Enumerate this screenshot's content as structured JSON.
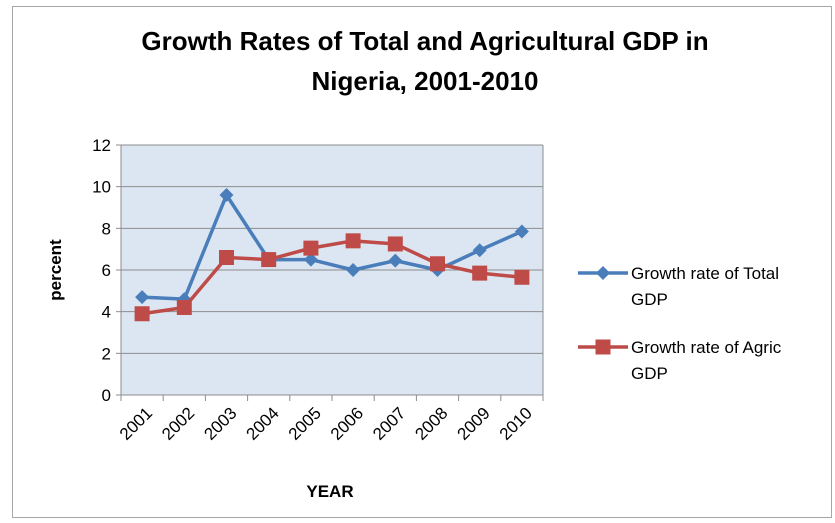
{
  "chart_data": {
    "type": "line",
    "title_line1": "Growth Rates of Total and Agricultural GDP in",
    "title_line2": "Nigeria, 2001-2010",
    "xlabel": "YEAR",
    "ylabel": "percent",
    "categories": [
      "2001",
      "2002",
      "2003",
      "2004",
      "2005",
      "2006",
      "2007",
      "2008",
      "2009",
      "2010"
    ],
    "ylim": [
      0,
      12
    ],
    "yticks": [
      "0",
      "2",
      "4",
      "6",
      "8",
      "10",
      "12"
    ],
    "grid": true,
    "legend_position": "right",
    "series": [
      {
        "name_line1": "Growth rate of Total",
        "name_line2": "GDP",
        "marker": "diamond",
        "color": "#4a7ebb",
        "values": [
          4.7,
          4.6,
          9.6,
          6.5,
          6.5,
          6.0,
          6.45,
          6.0,
          6.95,
          7.85
        ]
      },
      {
        "name_line1": "Growth rate of Agric",
        "name_line2": "GDP",
        "marker": "square",
        "color": "#be4b48",
        "values": [
          3.9,
          4.2,
          6.6,
          6.5,
          7.05,
          7.4,
          7.25,
          6.3,
          5.85,
          5.65
        ]
      }
    ],
    "plot_background": "#dce6f2"
  }
}
